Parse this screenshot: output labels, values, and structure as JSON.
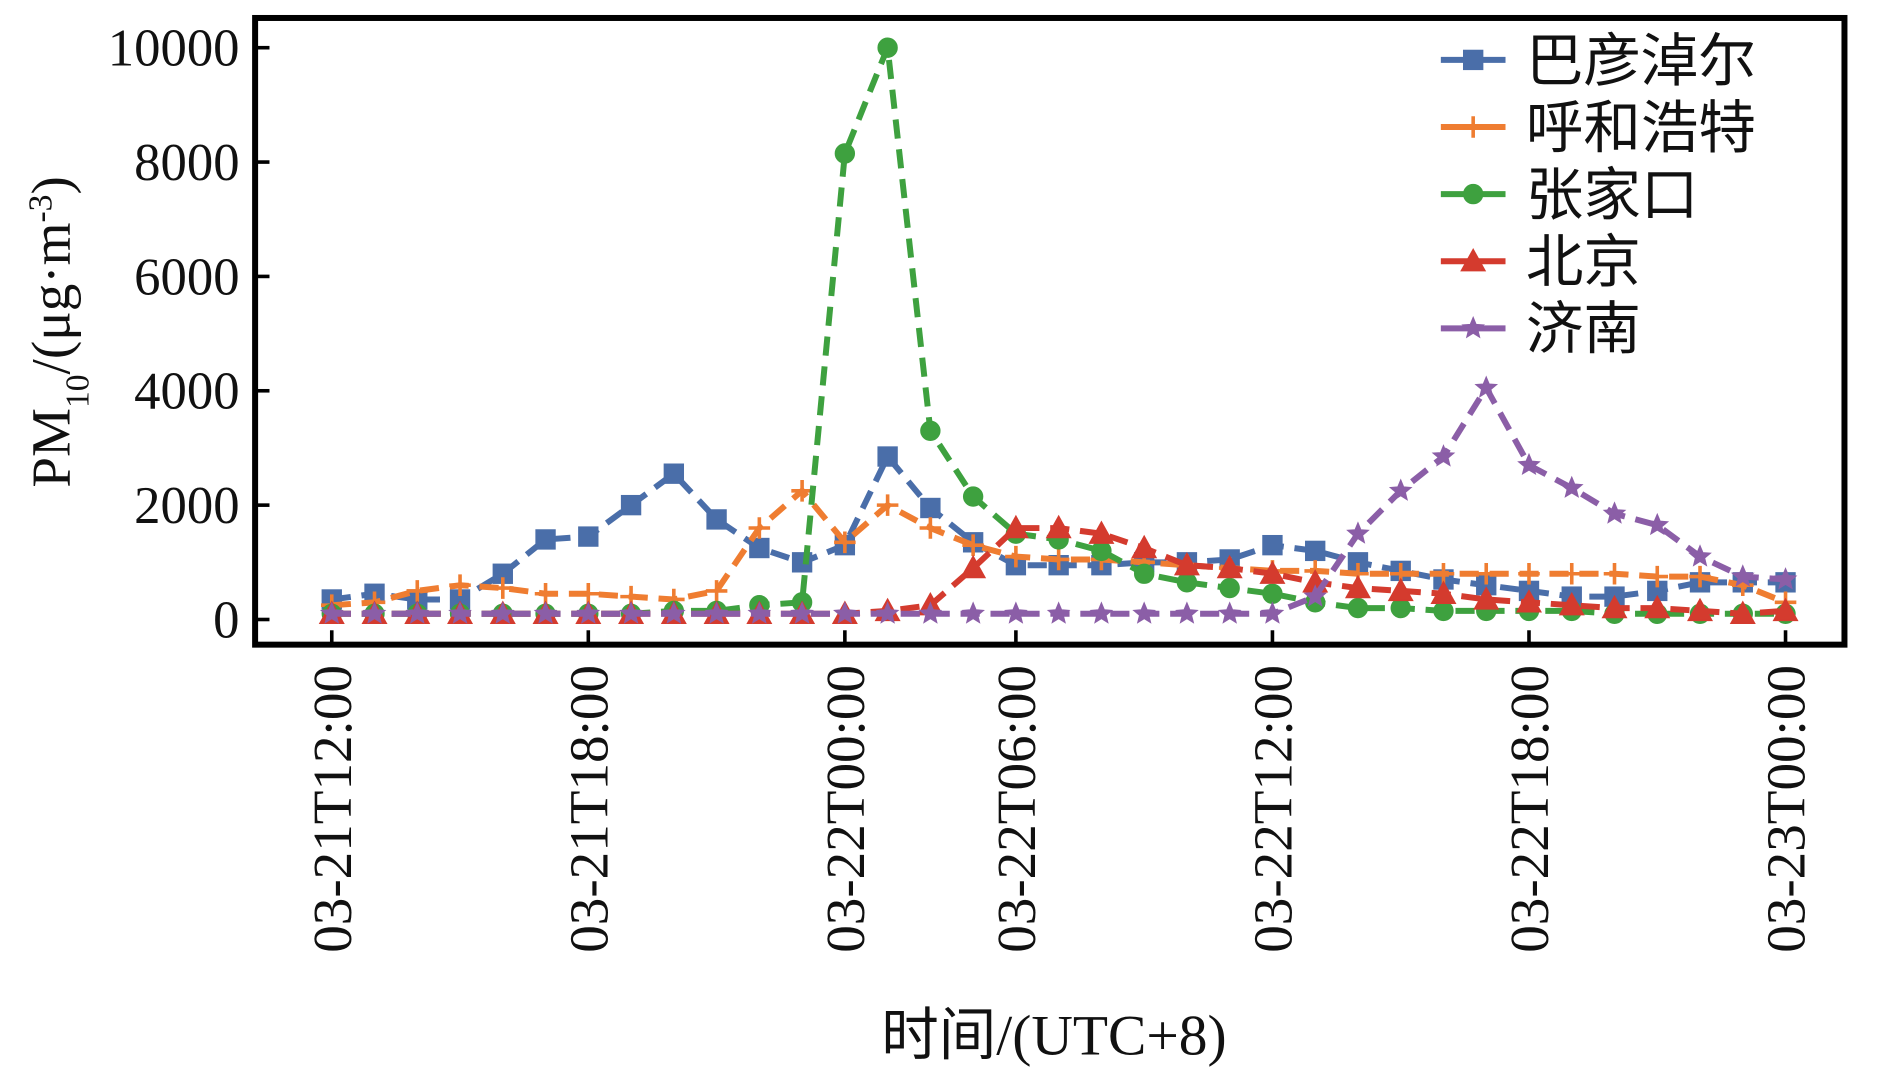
{
  "chart_data": {
    "type": "line",
    "ylabel": [
      "PM",
      "10",
      "/(μg·m",
      "-3",
      ")"
    ],
    "xlabel": "时间/(UTC+8)",
    "categories": [
      "03-21T12:00",
      null,
      null,
      null,
      null,
      null,
      "03-21T18:00",
      null,
      null,
      null,
      null,
      null,
      "03-22T00:00",
      null,
      null,
      null,
      "03-22T06:00",
      null,
      null,
      null,
      null,
      null,
      "03-22T12:00",
      null,
      null,
      null,
      null,
      null,
      "03-22T18:00",
      null,
      null,
      null,
      null,
      null,
      "03-23T00:00"
    ],
    "ylim": [
      -440,
      10520
    ],
    "yticks": [
      0,
      2000,
      4000,
      6000,
      8000,
      10000
    ],
    "legend": "upper right",
    "series": [
      {
        "name": "巴彦淖尔",
        "color": "#4a6ea9",
        "marker": "square",
        "values": [
          350,
          450,
          350,
          350,
          800,
          1400,
          1450,
          2000,
          2550,
          1750,
          1250,
          1000,
          1300,
          2850,
          1950,
          1350,
          950,
          950,
          950,
          1000,
          1000,
          1050,
          1300,
          1200,
          1000,
          850,
          700,
          600,
          500,
          400,
          400,
          500,
          650,
          650,
          650
        ]
      },
      {
        "name": "呼和浩特",
        "color": "#ef7d31",
        "marker": "plus",
        "values": [
          250,
          300,
          500,
          600,
          550,
          450,
          450,
          400,
          350,
          500,
          1600,
          2250,
          1350,
          2000,
          1600,
          1300,
          1100,
          1050,
          1050,
          1000,
          950,
          900,
          850,
          850,
          800,
          800,
          800,
          800,
          800,
          800,
          800,
          750,
          750,
          600,
          300
        ]
      },
      {
        "name": "张家口",
        "color": "#3ea13f",
        "marker": "circle",
        "values": [
          100,
          100,
          100,
          100,
          100,
          100,
          100,
          100,
          150,
          150,
          250,
          300,
          8150,
          10000,
          3300,
          2150,
          1500,
          1400,
          1200,
          800,
          650,
          550,
          450,
          300,
          200,
          200,
          150,
          150,
          150,
          150,
          100,
          100,
          100,
          100,
          100
        ]
      },
      {
        "name": "北京",
        "color": "#d43b2e",
        "marker": "triangle",
        "values": [
          100,
          100,
          100,
          100,
          100,
          100,
          100,
          100,
          100,
          100,
          100,
          100,
          100,
          150,
          250,
          900,
          1600,
          1600,
          1500,
          1250,
          950,
          900,
          800,
          650,
          550,
          500,
          450,
          350,
          300,
          250,
          200,
          200,
          150,
          100,
          150
        ]
      },
      {
        "name": "济南",
        "color": "#8b5ea7",
        "marker": "star",
        "values": [
          100,
          100,
          100,
          100,
          100,
          100,
          100,
          100,
          100,
          100,
          100,
          100,
          100,
          100,
          100,
          100,
          100,
          100,
          100,
          100,
          100,
          100,
          100,
          400,
          1500,
          2250,
          2850,
          4050,
          2700,
          2300,
          1850,
          1650,
          1100,
          750,
          700
        ]
      }
    ]
  }
}
